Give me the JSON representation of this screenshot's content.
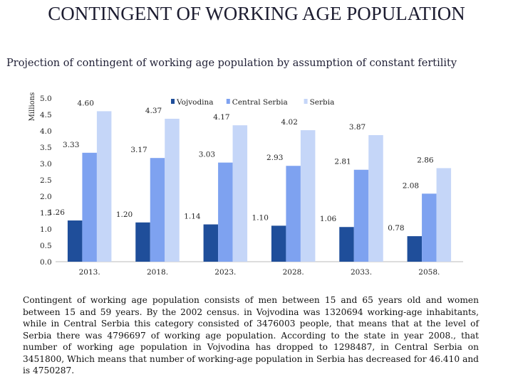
{
  "title": "CONTINGENT OF WORKING AGE POPULATION",
  "subtitle": "Projection of contingent of working age population by assumption of constant fertility",
  "description": "Contingent of working age population consists of men between 15 and 65 years old and women between 15 and 59 years. By the 2002 census. in Vojvodina was 1320694 working-age inhabitants,  while in Central Serbia this category consisted of 3476003 people, that means that at the level of Serbia there was 4796697 of working age population. According to the state in year 2008., that number of working age population in Vojvodina has dropped to 1298487, in Central Serbia on 3451800, Which means that number of working-age population in Serbia has decreased for 46.410 and is 4750287.",
  "chart_data": {
    "type": "bar",
    "title": "",
    "xlabel": "",
    "ylabel": "Millions",
    "ylim": [
      0,
      5
    ],
    "yticks": [
      "0.0",
      "0.5",
      "1.0",
      "1.5",
      "2.0",
      "2.5",
      "3.0",
      "3.5",
      "4.0",
      "4.5",
      "5.0"
    ],
    "categories": [
      "2013.",
      "2018.",
      "2023.",
      "2028.",
      "2033.",
      "2058."
    ],
    "legend_position": "top",
    "series": [
      {
        "name": "Vojvodina",
        "color": "#1f4e9a",
        "values": [
          1.26,
          1.2,
          1.14,
          1.1,
          1.06,
          0.78
        ],
        "labels": [
          "1.26",
          "1.20",
          "1.14",
          "1.10",
          "1.06",
          "0.78"
        ]
      },
      {
        "name": "Central Serbia",
        "color": "#7ea2f0",
        "values": [
          3.33,
          3.17,
          3.03,
          2.93,
          2.81,
          2.08
        ],
        "labels": [
          "3.33",
          "3.17",
          "3.03",
          "2.93",
          "2.81",
          "2.08"
        ]
      },
      {
        "name": "Serbia",
        "color": "#c5d6f8",
        "values": [
          4.6,
          4.37,
          4.17,
          4.02,
          3.87,
          2.86
        ],
        "labels": [
          "4.60",
          "4.37",
          "4.17",
          "4.02",
          "3.87",
          "2.86"
        ]
      }
    ]
  }
}
